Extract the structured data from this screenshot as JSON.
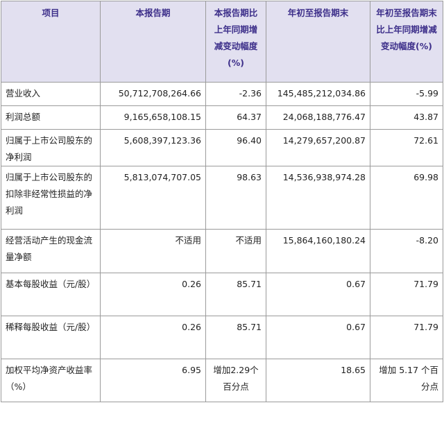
{
  "headers": {
    "item": "项目",
    "current": "本报告期",
    "current_change": "本报告期比上年同期增减变动幅度(%)",
    "ytd": "年初至报告期末",
    "ytd_change": "年初至报告期末比上年同期增减变动幅度(%)"
  },
  "rows": [
    {
      "label": "营业收入",
      "current": "50,712,708,264.66",
      "current_change": "-2.36",
      "ytd": "145,485,212,034.86",
      "ytd_change": "-5.99"
    },
    {
      "label": "利润总额",
      "current": "9,165,658,108.15",
      "current_change": "64.37",
      "ytd": "24,068,188,776.47",
      "ytd_change": "43.87"
    },
    {
      "label": "归属于上市公司股东的净利润",
      "current": "5,608,397,123.36",
      "current_change": "96.40",
      "ytd": "14,279,657,200.87",
      "ytd_change": "72.61"
    },
    {
      "label": "归属于上市公司股东的扣除非经常性损益的净利润",
      "current": "5,813,074,707.05",
      "current_change": "98.63",
      "ytd": "14,536,938,974.28",
      "ytd_change": "69.98"
    },
    {
      "label": "经营活动产生的现金流量净额",
      "current": "不适用",
      "current_change": "不适用",
      "ytd": "15,864,160,180.24",
      "ytd_change": "-8.20"
    },
    {
      "label": "基本每股收益（元/股）",
      "current": "0.26",
      "current_change": "85.71",
      "ytd": "0.67",
      "ytd_change": "71.79"
    },
    {
      "label": "稀释每股收益（元/股）",
      "current": "0.26",
      "current_change": "85.71",
      "ytd": "0.67",
      "ytd_change": "71.79"
    },
    {
      "label": "加权平均净资产收益率（%）",
      "current": "6.95",
      "current_change": "增加2.29个百分点",
      "ytd": "18.65",
      "ytd_change": "增加 5.17 个百分点"
    }
  ]
}
